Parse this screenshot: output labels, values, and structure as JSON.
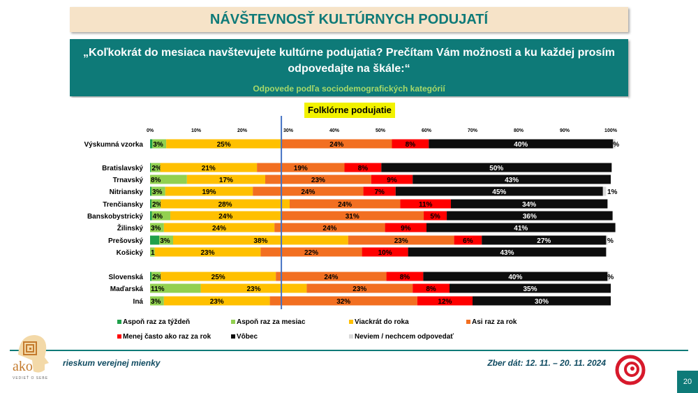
{
  "header": {
    "title": "NÁVŠTEVNOSŤ KULTÚRNYCH PODUJATÍ",
    "question": "„Koľkokrát do mesiaca navštevujete kultúrne podujatia? Prečítam Vám možnosti a ku každej prosím odpovedajte na škále:“",
    "subtitle": "Odpovede podľa sociodemografických kategórií"
  },
  "footer": {
    "left": "rieskum verejnej mienky",
    "right": "Zber dát: 12. 11. – 20. 11. 2024",
    "page": "20",
    "logo_text": "ako",
    "logo_sub": "VEDIEŤ O SEBE"
  },
  "chart_data": {
    "type": "bar",
    "orientation": "horizontal",
    "stacked": true,
    "title": "Folklórne podujatie",
    "xlim": [
      0,
      100
    ],
    "xticks": [
      "0%",
      "10%",
      "20%",
      "30%",
      "40%",
      "50%",
      "60%",
      "70%",
      "80%",
      "90%",
      "100%"
    ],
    "reference_line_at": 28.5,
    "series_names": [
      "Aspoň raz za týždeň",
      "Aspoň raz za mesiac",
      "Viackrát do roka",
      "Asi raz za rok",
      "Menej často ako raz za rok",
      "Vôbec",
      "Neviem / nechcem odpovedať"
    ],
    "colors": [
      "#1fa04a",
      "#92d050",
      "#ffc000",
      "#f26f21",
      "#ff0000",
      "#0d0d0d",
      "#d9d9d9"
    ],
    "label_colors": [
      "#000000",
      "#000000",
      "#000000",
      "#000000",
      "#000000",
      "#ffffff",
      "#000000"
    ],
    "groups": [
      [
        "Výskumná vzorka"
      ],
      [
        "Bratislavský",
        "Trnavský",
        "Nitriansky",
        "Trenčiansky",
        "Banskobystrický",
        "Žilinský",
        "Prešovský",
        "Košický"
      ],
      [
        "Slovenská",
        "Maďarská",
        "Iná"
      ]
    ],
    "categories": [
      "Výskumná vzorka",
      "Bratislavský",
      "Trnavský",
      "Nitriansky",
      "Trenčiansky",
      "Banskobystrický",
      "Žilinský",
      "Prešovský",
      "Košický",
      "Slovenská",
      "Maďarská",
      "Iná"
    ],
    "values": [
      [
        0.5,
        3,
        25,
        24,
        8,
        40,
        0.5
      ],
      [
        0.2,
        2,
        21,
        19,
        8,
        50,
        0
      ],
      [
        0,
        8,
        17,
        23,
        9,
        43,
        0
      ],
      [
        0.3,
        3,
        19,
        24,
        7,
        45,
        0.7
      ],
      [
        0.3,
        2,
        28,
        24,
        11,
        34,
        0
      ],
      [
        0.4,
        4,
        24,
        31,
        5,
        36,
        0
      ],
      [
        0,
        3,
        24,
        24,
        9,
        41,
        0
      ],
      [
        2,
        3,
        38,
        23,
        6,
        27,
        0.3
      ],
      [
        0,
        1,
        23,
        22,
        10,
        43,
        0
      ],
      [
        0.3,
        2,
        25,
        24,
        8,
        40,
        0.4
      ],
      [
        0,
        11,
        23,
        23,
        8,
        35,
        0
      ],
      [
        0,
        3,
        23,
        32,
        12,
        30,
        0
      ]
    ],
    "labels": [
      [
        "",
        "3%",
        "25%",
        "24%",
        "8%",
        "40%",
        "%"
      ],
      [
        "",
        "2%",
        "21%",
        "19%",
        "8%",
        "50%",
        ""
      ],
      [
        "",
        "8%",
        "17%",
        "23%",
        "9%",
        "43%",
        ""
      ],
      [
        "",
        "3%",
        "19%",
        "24%",
        "7%",
        "45%",
        "1%"
      ],
      [
        "",
        "2%",
        "28%",
        "24%",
        "11%",
        "34%",
        ""
      ],
      [
        "",
        "4%",
        "24%",
        "31%",
        "5%",
        "36%",
        ""
      ],
      [
        "",
        "3%",
        "24%",
        "24%",
        "9%",
        "41%",
        ""
      ],
      [
        "",
        "3%",
        "38%",
        "23%",
        "6%",
        "27%",
        "%"
      ],
      [
        "",
        "1%",
        "23%",
        "22%",
        "10%",
        "43%",
        ""
      ],
      [
        "",
        "2%",
        "25%",
        "24%",
        "8%",
        "40%",
        "%"
      ],
      [
        "",
        "11%",
        "23%",
        "23%",
        "8%",
        "35%",
        ""
      ],
      [
        "",
        "3%",
        "23%",
        "32%",
        "12%",
        "30%",
        ""
      ]
    ]
  }
}
